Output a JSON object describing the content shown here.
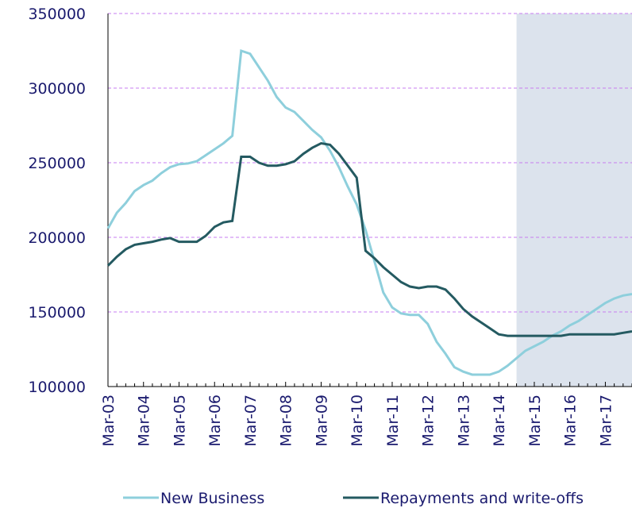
{
  "chart_data": {
    "type": "line",
    "categories": [
      "Mar-03",
      null,
      null,
      null,
      "Mar-04",
      null,
      null,
      null,
      "Mar-05",
      null,
      null,
      null,
      "Mar-06",
      null,
      null,
      null,
      "Mar-07",
      null,
      null,
      null,
      "Mar-08",
      null,
      null,
      null,
      "Mar-09",
      null,
      null,
      null,
      "Mar-10",
      null,
      null,
      null,
      "Mar-11",
      null,
      null,
      null,
      "Mar-12",
      null,
      null,
      null,
      "Mar-13",
      null,
      null,
      null,
      "Mar-14",
      null,
      null,
      null,
      "Mar-15",
      null,
      null,
      null,
      "Mar-16",
      null,
      null,
      null,
      "Mar-17",
      null,
      null,
      null
    ],
    "series": [
      {
        "name": "New Business",
        "color": "#8ecfdc",
        "values": [
          206000,
          216500,
          223000,
          231000,
          235000,
          238000,
          243000,
          247000,
          249000,
          249500,
          251000,
          255000,
          259000,
          263000,
          268000,
          325000,
          323000,
          314000,
          305000,
          294000,
          287000,
          284000,
          278000,
          272000,
          267000,
          258000,
          247000,
          234000,
          222000,
          205000,
          184000,
          163000,
          153000,
          149000,
          148000,
          148000,
          142000,
          130000,
          122000,
          113000,
          110000,
          108000,
          108000,
          108000,
          110000,
          114000,
          119000,
          124000,
          127000,
          130000,
          134000,
          137000,
          141000,
          144000,
          148000,
          152000,
          156000,
          159000,
          161000,
          162000
        ]
      },
      {
        "name": "Repayments and write-offs",
        "color": "#245a61",
        "values": [
          181000,
          187000,
          192000,
          195000,
          196000,
          197000,
          198500,
          199500,
          197000,
          197000,
          197000,
          201000,
          207000,
          210000,
          211000,
          254000,
          254000,
          250000,
          248000,
          248000,
          249000,
          251000,
          256000,
          260000,
          263000,
          262000,
          256000,
          248000,
          240000,
          191000,
          186000,
          180000,
          175000,
          170000,
          167000,
          166000,
          167000,
          167000,
          165000,
          159000,
          152000,
          147000,
          143000,
          139000,
          135000,
          134000,
          134000,
          134000,
          134000,
          134000,
          134000,
          134000,
          135000,
          135000,
          135000,
          135000,
          135000,
          135000,
          136000,
          137000
        ]
      }
    ],
    "ylim": [
      100000,
      350000
    ],
    "yticks": [
      100000,
      150000,
      200000,
      250000,
      300000,
      350000
    ],
    "grid": true,
    "shaded_from_index": 46
  }
}
